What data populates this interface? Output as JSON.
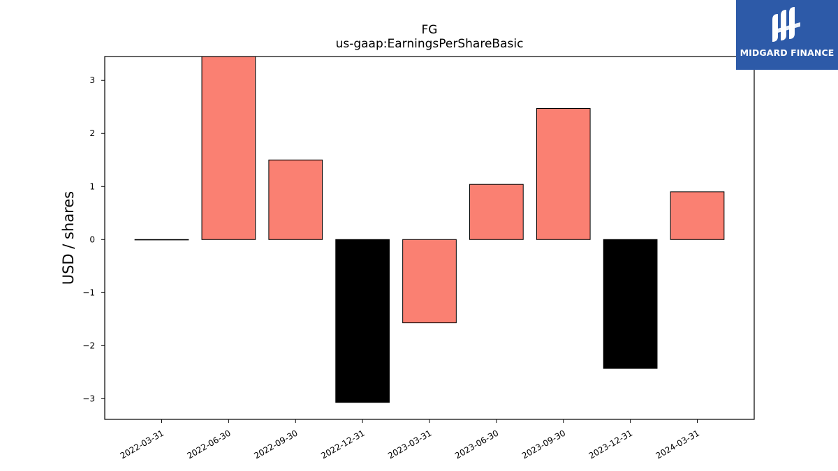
{
  "brand": {
    "name": "MIDGARD FINANCE",
    "color": "#2d5aa8"
  },
  "chart_data": {
    "type": "bar",
    "title": "FG",
    "subtitle": "us-gaap:EarningsPerShareBasic",
    "xlabel": "",
    "ylabel": "USD / shares",
    "categories": [
      "2022-03-31",
      "2022-06-30",
      "2022-09-30",
      "2022-12-31",
      "2023-03-31",
      "2023-06-30",
      "2023-09-30",
      "2023-12-31",
      "2024-03-31"
    ],
    "values": [
      0.0,
      3.45,
      1.5,
      -3.07,
      -1.57,
      1.04,
      2.47,
      -2.43,
      0.9
    ],
    "bar_colors": [
      "#fa8072",
      "#fa8072",
      "#fa8072",
      "#000000",
      "#fa8072",
      "#fa8072",
      "#fa8072",
      "#000000",
      "#fa8072"
    ],
    "ylim": [
      -3.39,
      3.45
    ],
    "yticks": [
      -3,
      -2,
      -1,
      0,
      1,
      2,
      3
    ],
    "ytick_labels": [
      "−3",
      "−2",
      "−1",
      "0",
      "1",
      "2",
      "3"
    ],
    "grid": false,
    "legend": "none"
  }
}
